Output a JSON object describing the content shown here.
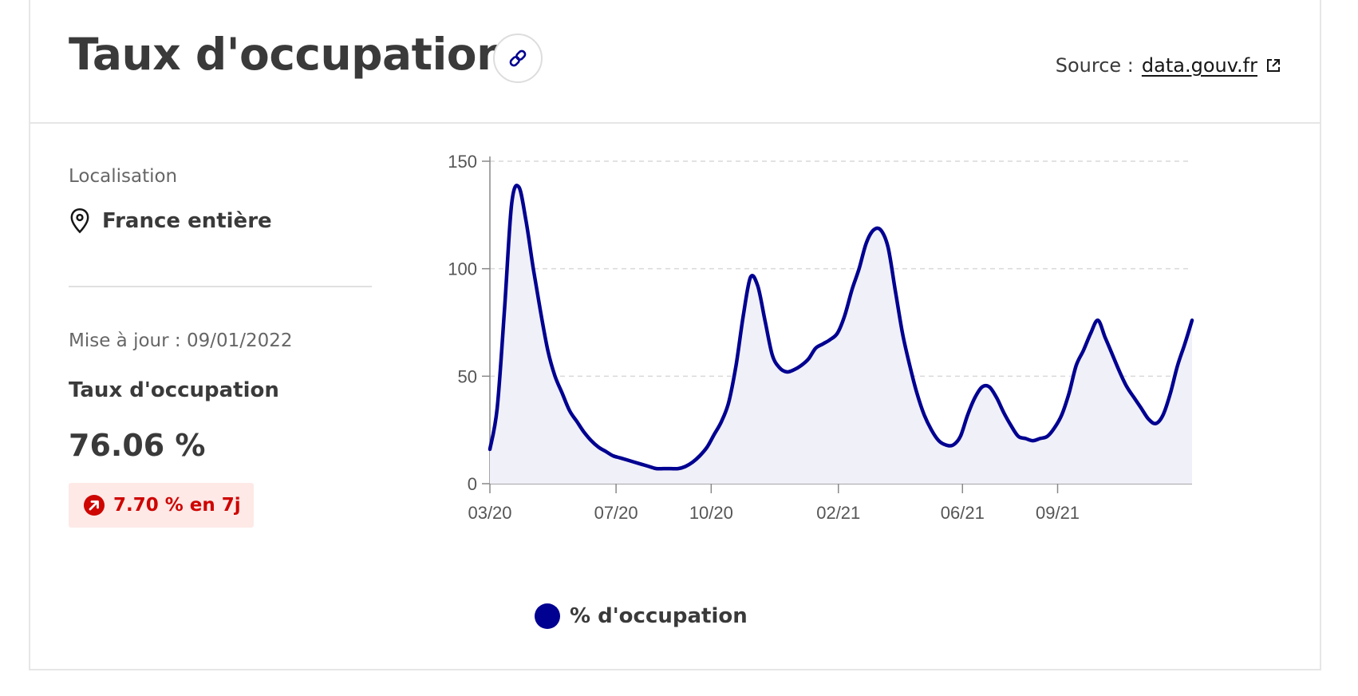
{
  "header": {
    "title": "Taux d'occupation",
    "source_label": "Source :",
    "source_link": "data.gouv.fr"
  },
  "sidebar": {
    "location_label": "Localisation",
    "location_value": "France entière",
    "updated": "Mise à jour : 09/01/2022",
    "metric_label": "Taux d'occupation",
    "metric_value": "76.06 %",
    "trend_text": "7.70 % en 7j"
  },
  "legend": {
    "label": "% d'occupation"
  },
  "colors": {
    "line": "#000091",
    "fill": "#f0f0f8",
    "trend": "#ce0500",
    "trend_bg": "#fee9e7"
  },
  "chart_data": {
    "type": "area",
    "title": "",
    "xlabel": "",
    "ylabel": "",
    "ylim": [
      0,
      150
    ],
    "y_ticks": [
      0,
      50,
      100,
      150
    ],
    "x_ticks": [
      "03/20",
      "07/20",
      "10/20",
      "02/21",
      "06/21",
      "09/21"
    ],
    "x_range": [
      "2020-03-01",
      "2022-01-09"
    ],
    "grid": "horizontal dashed",
    "legend": "bottom-left",
    "series": [
      {
        "name": "% d'occupation",
        "x": [
          "2020-03-01",
          "2020-03-08",
          "2020-03-15",
          "2020-03-22",
          "2020-03-29",
          "2020-04-05",
          "2020-04-12",
          "2020-04-19",
          "2020-04-26",
          "2020-05-03",
          "2020-05-10",
          "2020-05-17",
          "2020-05-24",
          "2020-05-31",
          "2020-06-07",
          "2020-06-14",
          "2020-06-21",
          "2020-06-28",
          "2020-07-05",
          "2020-07-12",
          "2020-07-19",
          "2020-07-26",
          "2020-08-02",
          "2020-08-09",
          "2020-08-16",
          "2020-08-23",
          "2020-08-30",
          "2020-09-06",
          "2020-09-13",
          "2020-09-20",
          "2020-09-27",
          "2020-10-04",
          "2020-10-11",
          "2020-10-18",
          "2020-10-25",
          "2020-11-01",
          "2020-11-08",
          "2020-11-15",
          "2020-11-22",
          "2020-11-29",
          "2020-12-06",
          "2020-12-13",
          "2020-12-20",
          "2020-12-27",
          "2021-01-03",
          "2021-01-10",
          "2021-01-17",
          "2021-01-24",
          "2021-01-31",
          "2021-02-07",
          "2021-02-14",
          "2021-02-21",
          "2021-02-28",
          "2021-03-07",
          "2021-03-14",
          "2021-03-21",
          "2021-03-28",
          "2021-04-04",
          "2021-04-11",
          "2021-04-18",
          "2021-04-25",
          "2021-05-02",
          "2021-05-09",
          "2021-05-16",
          "2021-05-23",
          "2021-05-30",
          "2021-06-06",
          "2021-06-13",
          "2021-06-20",
          "2021-06-27",
          "2021-07-04",
          "2021-07-11",
          "2021-07-18",
          "2021-07-25",
          "2021-08-01",
          "2021-08-08",
          "2021-08-15",
          "2021-08-22",
          "2021-08-29",
          "2021-09-05",
          "2021-09-12",
          "2021-09-19",
          "2021-09-26",
          "2021-10-03",
          "2021-10-10",
          "2021-10-17",
          "2021-10-24",
          "2021-10-31",
          "2021-11-07",
          "2021-11-14",
          "2021-11-21",
          "2021-11-28",
          "2021-12-05",
          "2021-12-12",
          "2021-12-19",
          "2021-12-26",
          "2022-01-02",
          "2022-01-09"
        ],
        "values": [
          16,
          35,
          80,
          130,
          138,
          122,
          100,
          80,
          62,
          50,
          42,
          34,
          29,
          24,
          20,
          17,
          15,
          13,
          12,
          11,
          10,
          9,
          8,
          7,
          7,
          7,
          7,
          8,
          10,
          13,
          17,
          23,
          29,
          38,
          55,
          78,
          96,
          92,
          76,
          60,
          54,
          52,
          53,
          55,
          58,
          63,
          65,
          67,
          70,
          78,
          90,
          100,
          112,
          118,
          118,
          110,
          90,
          70,
          55,
          42,
          32,
          25,
          20,
          18,
          18,
          22,
          32,
          40,
          45,
          45,
          40,
          33,
          27,
          22,
          21,
          20,
          21,
          22,
          26,
          32,
          42,
          55,
          62,
          70,
          76,
          68,
          60,
          52,
          45,
          40,
          35,
          30,
          28,
          32,
          42,
          55,
          65,
          76
        ]
      }
    ]
  }
}
